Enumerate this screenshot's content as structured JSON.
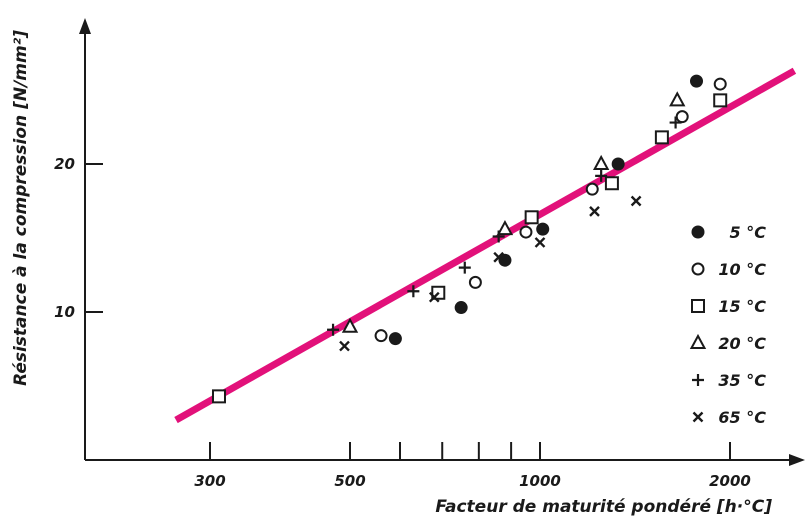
{
  "chart_data": {
    "type": "scatter",
    "title": "",
    "xlabel": "Facteur de maturité pondéré [h·°C]",
    "ylabel": "Résistance à la compression [N/mm²]",
    "x_scale": "log",
    "xlim": [
      235,
      2650
    ],
    "ylim": [
      0,
      29.5
    ],
    "x_ticks": [
      300,
      500,
      1000,
      2000
    ],
    "x_ticks_unlabeled": [
      600,
      700,
      800,
      900
    ],
    "y_ticks": [
      10,
      20
    ],
    "grid": false,
    "legend_position": "right",
    "colors": {
      "fit_line": "#e2117a",
      "markers": "#1a1a1a",
      "axes": "#1a1a1a"
    },
    "series": [
      {
        "name": "5 °C",
        "marker": "filled-circle",
        "points": [
          [
            590,
            8.2
          ],
          [
            750,
            10.3
          ],
          [
            880,
            13.5
          ],
          [
            1010,
            15.6
          ],
          [
            1330,
            20.0
          ],
          [
            1770,
            25.6
          ]
        ]
      },
      {
        "name": "10 °C",
        "marker": "open-circle",
        "points": [
          [
            560,
            8.4
          ],
          [
            790,
            12.0
          ],
          [
            950,
            15.4
          ],
          [
            1210,
            18.3
          ],
          [
            1680,
            23.2
          ],
          [
            1930,
            25.4
          ]
        ]
      },
      {
        "name": "15 °C",
        "marker": "open-square",
        "points": [
          [
            310,
            4.3
          ],
          [
            690,
            11.3
          ],
          [
            970,
            16.4
          ],
          [
            1300,
            18.7
          ],
          [
            1560,
            21.8
          ],
          [
            1930,
            24.3
          ]
        ]
      },
      {
        "name": "20 °C",
        "marker": "open-triangle",
        "points": [
          [
            500,
            9.0
          ],
          [
            880,
            15.6
          ],
          [
            1250,
            20.0
          ],
          [
            1650,
            24.3
          ]
        ]
      },
      {
        "name": "35 °C",
        "marker": "plus",
        "points": [
          [
            470,
            8.8
          ],
          [
            630,
            11.4
          ],
          [
            760,
            13.0
          ],
          [
            860,
            15.1
          ],
          [
            1250,
            19.2
          ],
          [
            1640,
            22.8
          ]
        ]
      },
      {
        "name": "65 °C",
        "marker": "cross",
        "points": [
          [
            490,
            7.7
          ],
          [
            680,
            11.0
          ],
          [
            860,
            13.7
          ],
          [
            1000,
            14.7
          ],
          [
            1220,
            16.8
          ],
          [
            1420,
            17.5
          ]
        ]
      }
    ],
    "fit_line": {
      "points": [
        [
          265,
          2.7
        ],
        [
          2530,
          26.3
        ]
      ]
    }
  }
}
